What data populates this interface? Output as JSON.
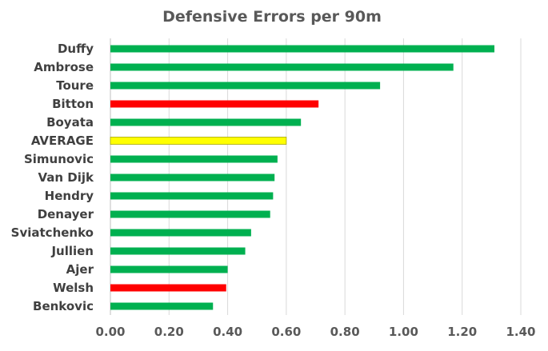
{
  "chart_data": {
    "type": "bar",
    "orientation": "horizontal",
    "title": "Defensive Errors per 90m",
    "xlabel": "",
    "ylabel": "",
    "categories": [
      "Duffy",
      "Ambrose",
      "Toure",
      "Bitton",
      "Boyata",
      "AVERAGE",
      "Simunovic",
      "Van Dijk",
      "Hendry",
      "Denayer",
      "Sviatchenko",
      "Jullien",
      "Ajer",
      "Welsh",
      "Benkovic"
    ],
    "values": [
      1.31,
      1.17,
      0.92,
      0.71,
      0.65,
      0.6,
      0.57,
      0.56,
      0.555,
      0.545,
      0.48,
      0.46,
      0.4,
      0.395,
      0.35
    ],
    "bar_colors": [
      "#00b050",
      "#00b050",
      "#00b050",
      "#ff0000",
      "#00b050",
      "#ffff00",
      "#00b050",
      "#00b050",
      "#00b050",
      "#00b050",
      "#00b050",
      "#00b050",
      "#00b050",
      "#ff0000",
      "#00b050"
    ],
    "xlim": [
      0,
      1.4
    ],
    "xticks": [
      "0.00",
      "0.20",
      "0.40",
      "0.60",
      "0.80",
      "1.00",
      "1.20",
      "1.40"
    ],
    "xtick_values": [
      0,
      0.2,
      0.4,
      0.6,
      0.8,
      1.0,
      1.2,
      1.4
    ],
    "grid": "vertical",
    "legend": "none"
  }
}
